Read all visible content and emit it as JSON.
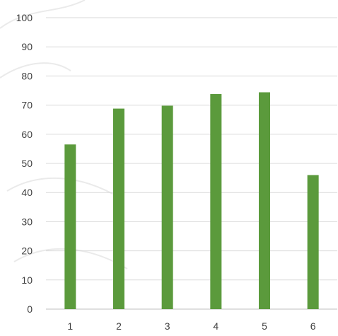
{
  "chart_data": {
    "type": "bar",
    "categories": [
      "1",
      "2",
      "3",
      "4",
      "5",
      "6"
    ],
    "values": [
      56.5,
      68.8,
      69.8,
      73.8,
      74.4,
      46
    ],
    "ylim": [
      0,
      100
    ],
    "yticks": [
      0,
      10,
      20,
      30,
      40,
      50,
      60,
      70,
      80,
      90,
      100
    ],
    "ytick_labels": [
      "0",
      "10",
      "20",
      "30",
      "40",
      "50",
      "60",
      "70",
      "80",
      "90",
      "100"
    ],
    "grid": true,
    "legend": "none",
    "colors": {
      "bar": "#5b9a3c",
      "grid": "#d9d9d9",
      "axis": "#bfbfbf",
      "text": "#404040"
    }
  }
}
